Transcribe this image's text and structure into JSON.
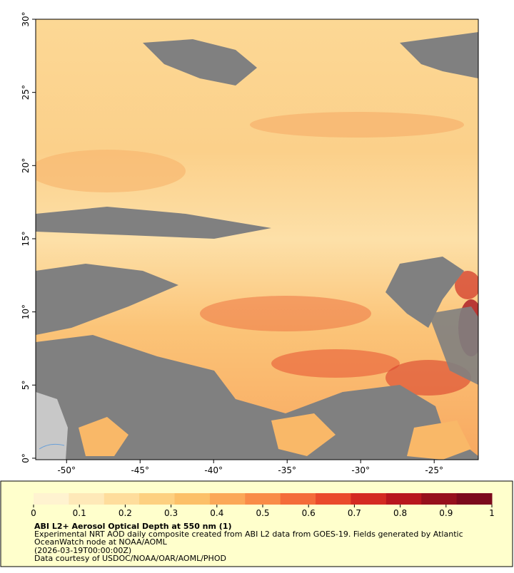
{
  "map": {
    "xlim": [
      -52.1,
      -22
    ],
    "ylim": [
      -0.1,
      30
    ],
    "xticks": [
      {
        "value": -50,
        "label": "-50°"
      },
      {
        "value": -45,
        "label": "-45°"
      },
      {
        "value": -40,
        "label": "-40°"
      },
      {
        "value": -35,
        "label": "-35°"
      },
      {
        "value": -30,
        "label": "-30°"
      },
      {
        "value": -25,
        "label": "-25°"
      }
    ],
    "yticks": [
      {
        "value": 0,
        "label": "0°"
      },
      {
        "value": 5,
        "label": "5°"
      },
      {
        "value": 10,
        "label": "10°"
      },
      {
        "value": 15,
        "label": "15°"
      },
      {
        "value": 20,
        "label": "20°"
      },
      {
        "value": 25,
        "label": "25°"
      },
      {
        "value": 30,
        "label": "30°"
      }
    ]
  },
  "colorbar": {
    "lim": [
      0,
      1
    ],
    "ticks": [
      0,
      0.1,
      0.2,
      0.3,
      0.4,
      0.5,
      0.6,
      0.7,
      0.8,
      0.9,
      1
    ],
    "colors": [
      "#fff3d0",
      "#fee9b8",
      "#fedd9c",
      "#fdd080",
      "#fcc068",
      "#fba858",
      "#f98c48",
      "#f46c3a",
      "#ea4a2c",
      "#d42a22",
      "#b8161e",
      "#96101c",
      "#7c0a1c"
    ]
  },
  "caption": {
    "title": "ABI L2+ Aerosol Optical Depth at 550 nm (1)",
    "lines": [
      "Experimental NRT AOD daily composite created from ABI L2 data from GOES-19. Fields generated by Atlantic",
      "OceanWatch node at NOAA/AOML",
      "(2026-03-19T00:00:00Z)",
      "Data courtesy of USDOC/NOAA/OAR/AOML/PHOD"
    ]
  }
}
